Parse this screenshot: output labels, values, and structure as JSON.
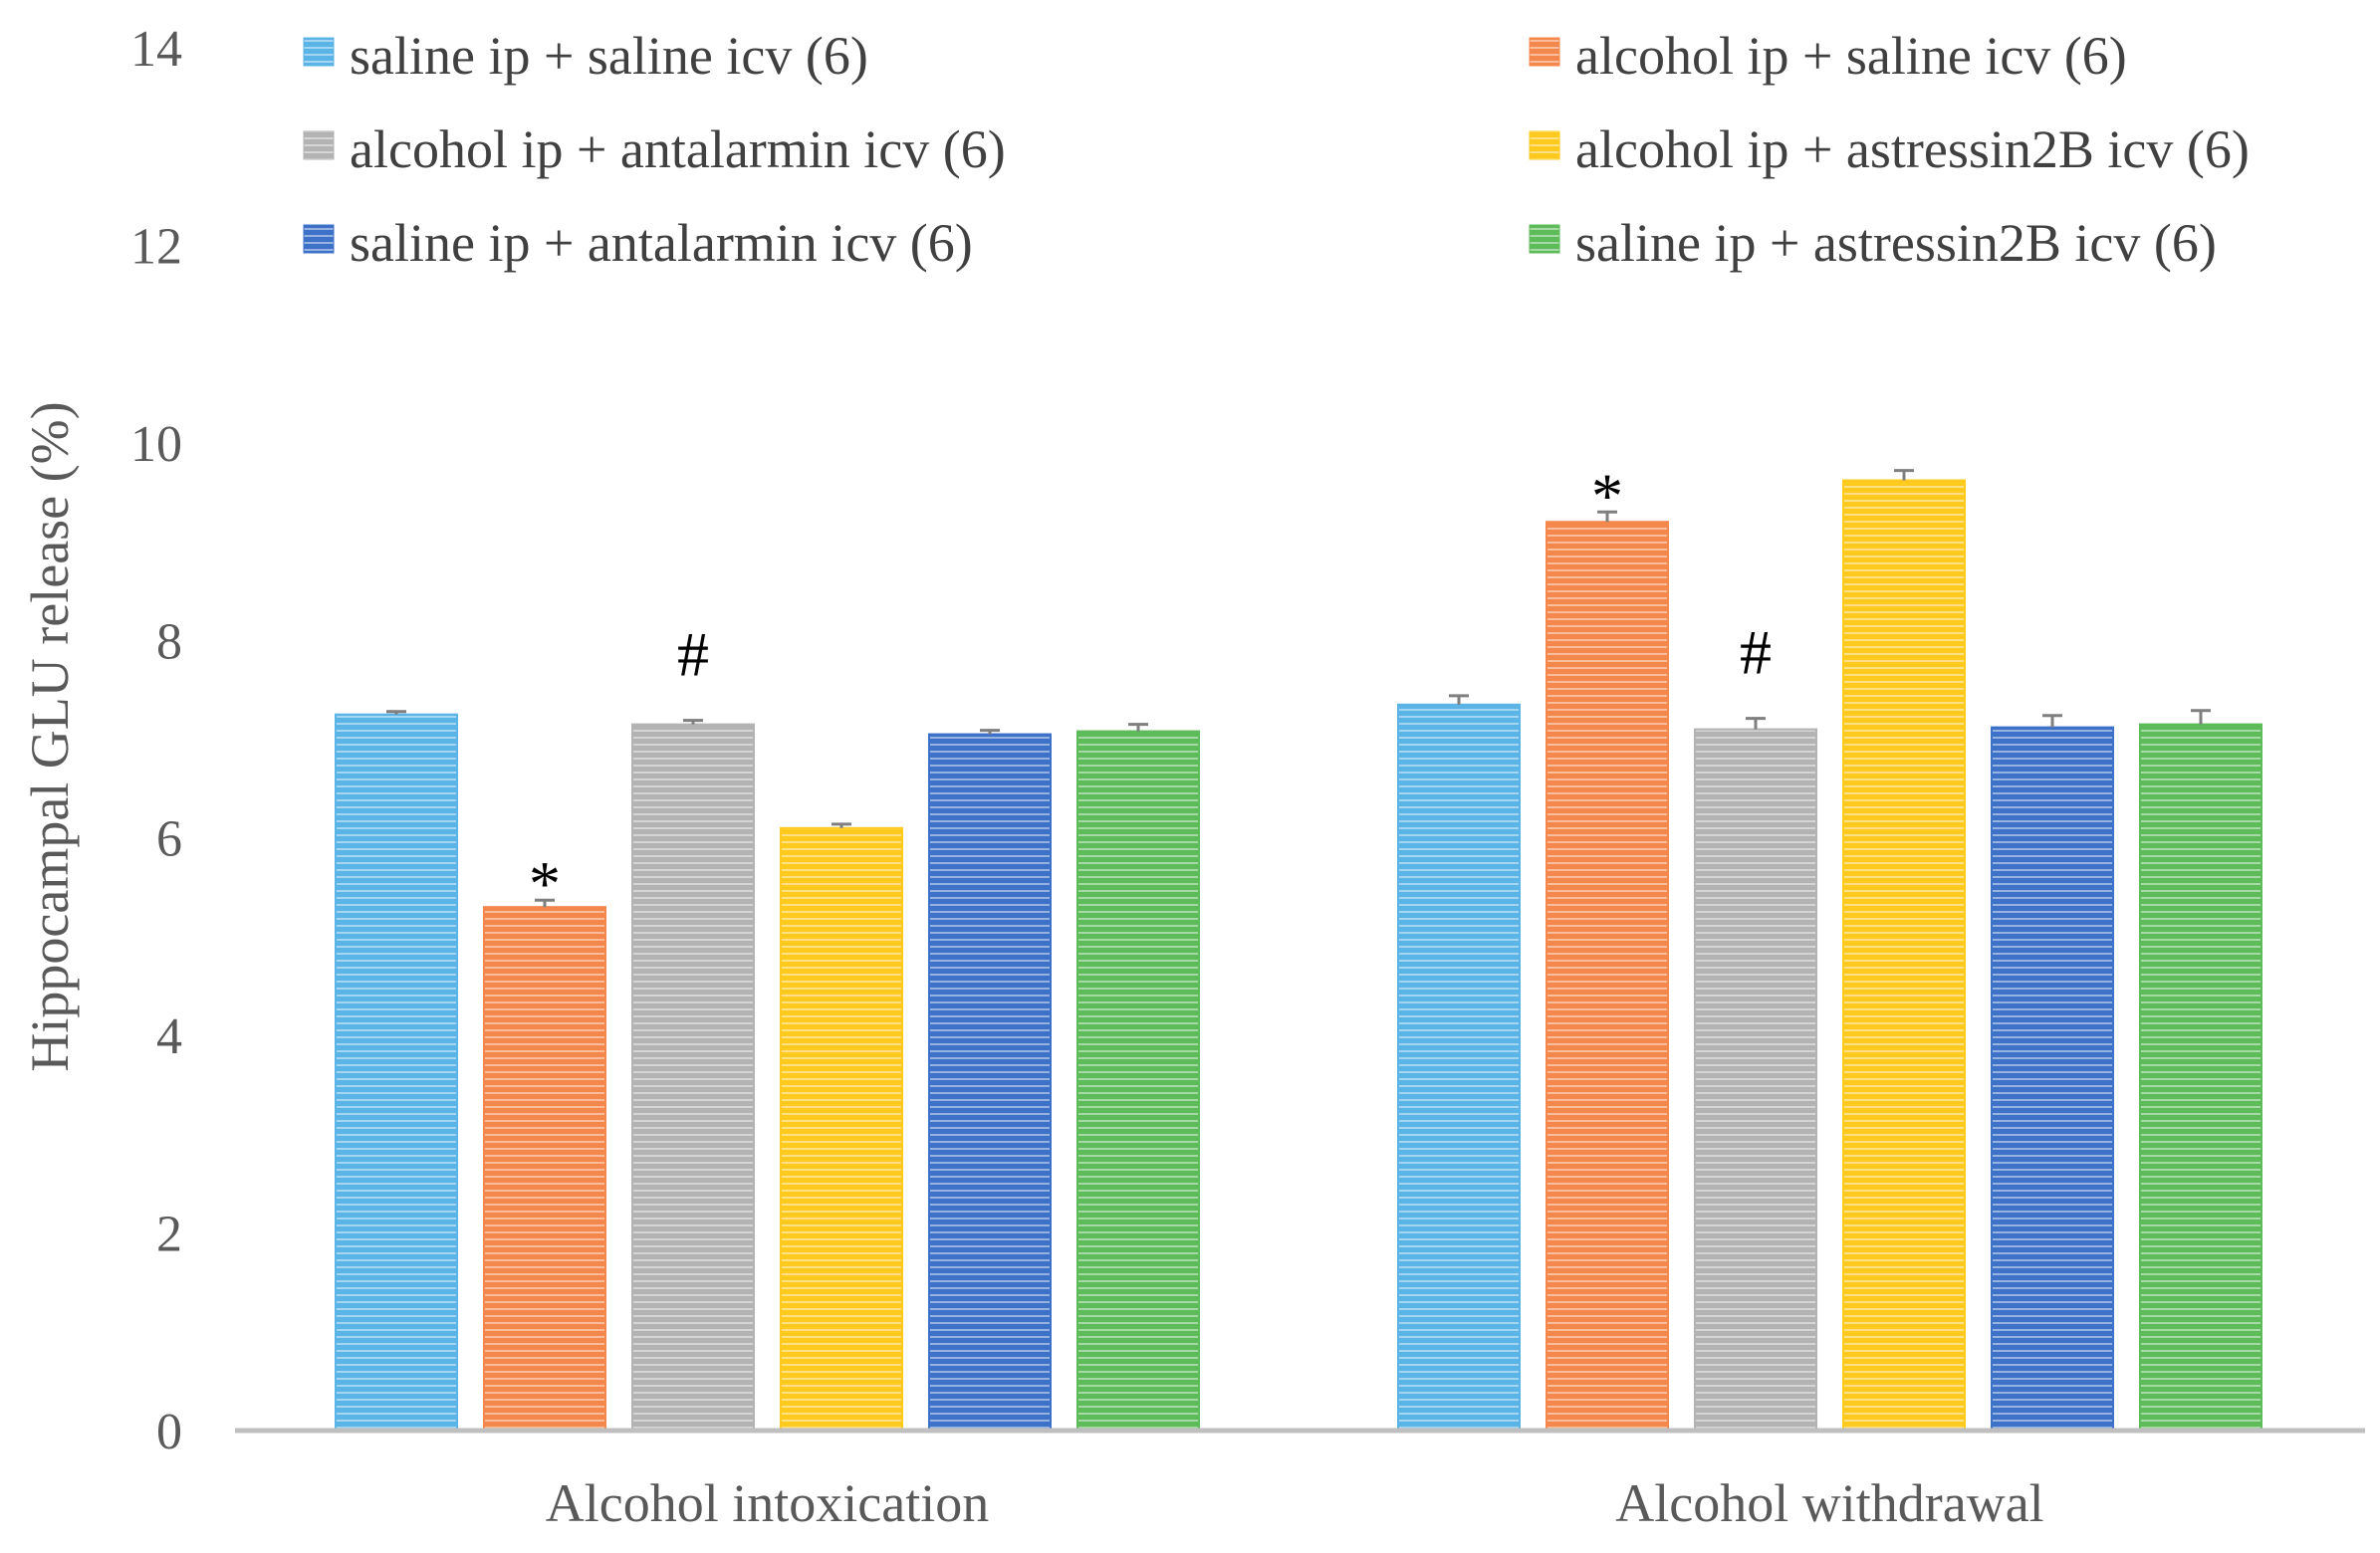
{
  "chart_data": {
    "type": "bar",
    "title": "",
    "xlabel": "",
    "ylabel": "Hippocampal GLU release (%)",
    "ylim": [
      0,
      14
    ],
    "yticks": [
      0,
      2,
      4,
      6,
      8,
      10,
      12,
      14
    ],
    "grid": false,
    "legend_position": "top",
    "categories": [
      "Alcohol intoxication",
      "Alcohol withdrawal"
    ],
    "series": [
      {
        "name": "saline ip + saline icv (6)",
        "color": "#5AB4E5",
        "values": [
          7.25,
          7.35
        ],
        "errors": [
          0.03,
          0.09
        ],
        "annotations": [
          "",
          ""
        ]
      },
      {
        "name": "alcohol ip + saline icv (6)",
        "color": "#F4874B",
        "values": [
          5.3,
          9.2
        ],
        "errors": [
          0.07,
          0.1
        ],
        "annotations": [
          "*",
          "*"
        ]
      },
      {
        "name": "alcohol ip + antalarmin icv (6)",
        "color": "#B3B3B3",
        "values": [
          7.15,
          7.1
        ],
        "errors": [
          0.04,
          0.11
        ],
        "annotations": [
          "#",
          "#"
        ]
      },
      {
        "name": "alcohol ip + astressin2B icv (6)",
        "color": "#FFC91E",
        "values": [
          6.1,
          9.62
        ],
        "errors": [
          0.04,
          0.1
        ],
        "annotations": [
          "",
          ""
        ]
      },
      {
        "name": "saline ip + antalarmin icv (6)",
        "color": "#3E72C9",
        "values": [
          7.05,
          7.12
        ],
        "errors": [
          0.04,
          0.12
        ],
        "annotations": [
          "",
          ""
        ]
      },
      {
        "name": "saline ip + astressin2B icv (6)",
        "color": "#5DBB5A",
        "values": [
          7.08,
          7.15
        ],
        "errors": [
          0.07,
          0.14
        ],
        "annotations": [
          "",
          ""
        ]
      }
    ]
  }
}
